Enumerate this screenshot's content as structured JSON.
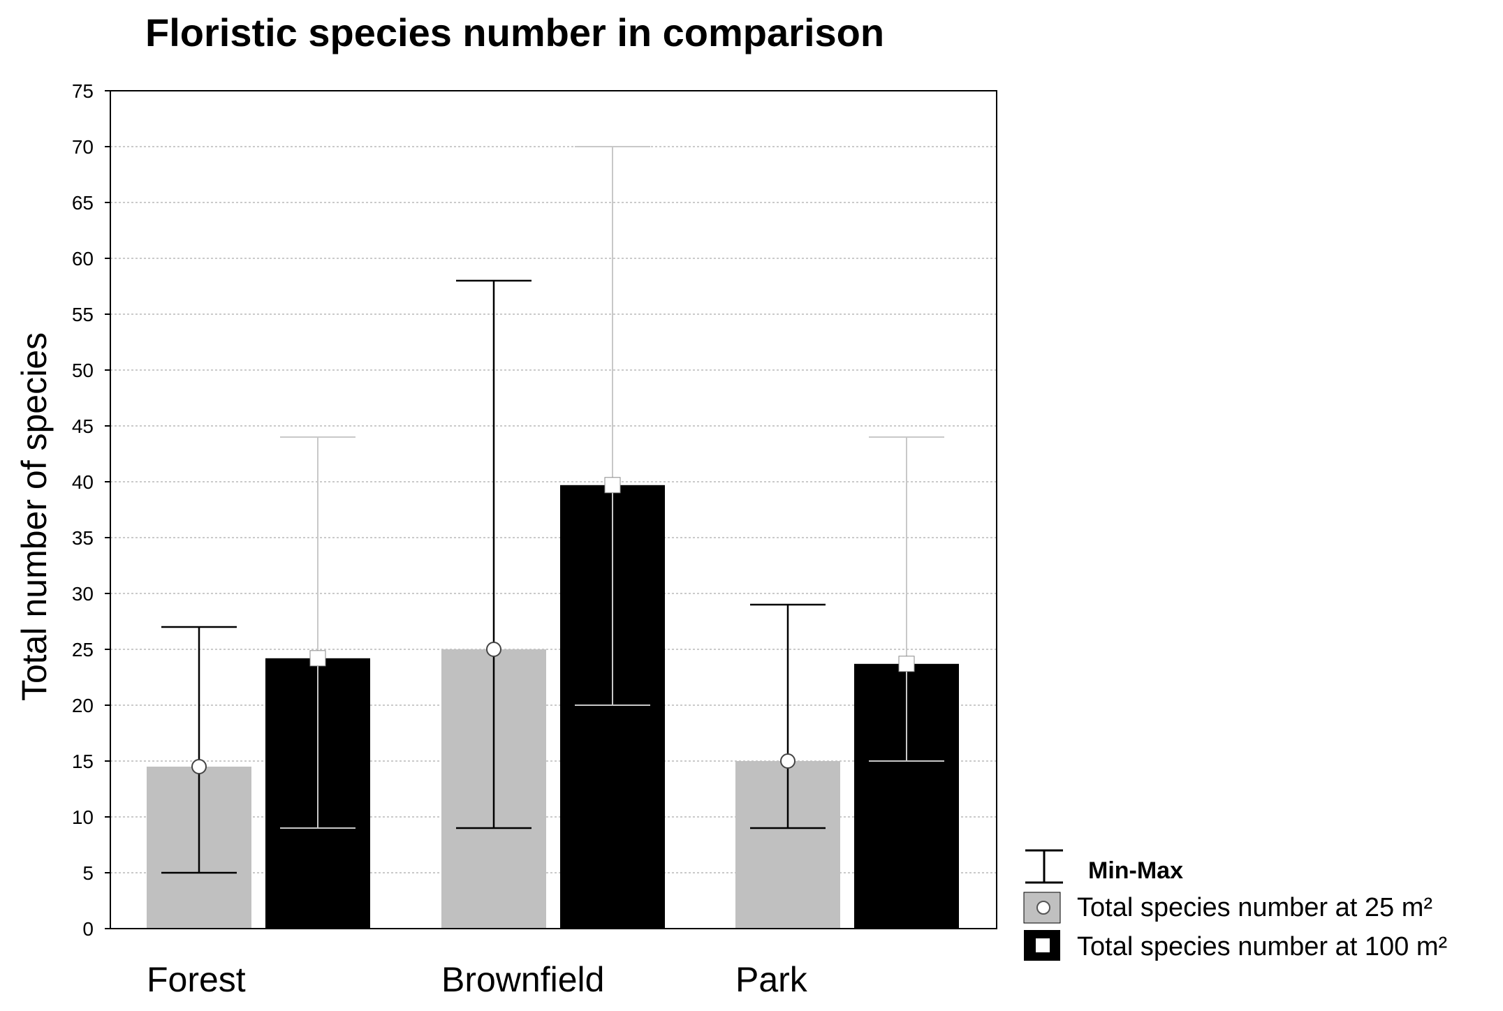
{
  "chart_data": {
    "type": "bar",
    "title": "Floristic species number in comparison",
    "xlabel": "",
    "ylabel": "Total number of species",
    "ylim": [
      0,
      75
    ],
    "yticks": [
      0,
      5,
      10,
      15,
      20,
      25,
      30,
      35,
      40,
      45,
      50,
      55,
      60,
      65,
      70,
      75
    ],
    "grid": true,
    "categories": [
      "Forest",
      "Brownfield",
      "Park"
    ],
    "series": [
      {
        "name": "Total species number at 25 m²",
        "color": "#c0c0c0",
        "marker": "circle",
        "values": [
          14.5,
          25,
          15
        ],
        "min": [
          5,
          9,
          9
        ],
        "max": [
          27,
          58,
          29
        ]
      },
      {
        "name": "Total species number at 100 m²",
        "color": "#000000",
        "marker": "square",
        "values": [
          24.2,
          39.7,
          23.7
        ],
        "min": [
          9,
          20,
          15
        ],
        "max": [
          44,
          70,
          44
        ]
      }
    ],
    "legend": {
      "position": "bottom-right",
      "minmax_label": "Min-Max"
    }
  }
}
